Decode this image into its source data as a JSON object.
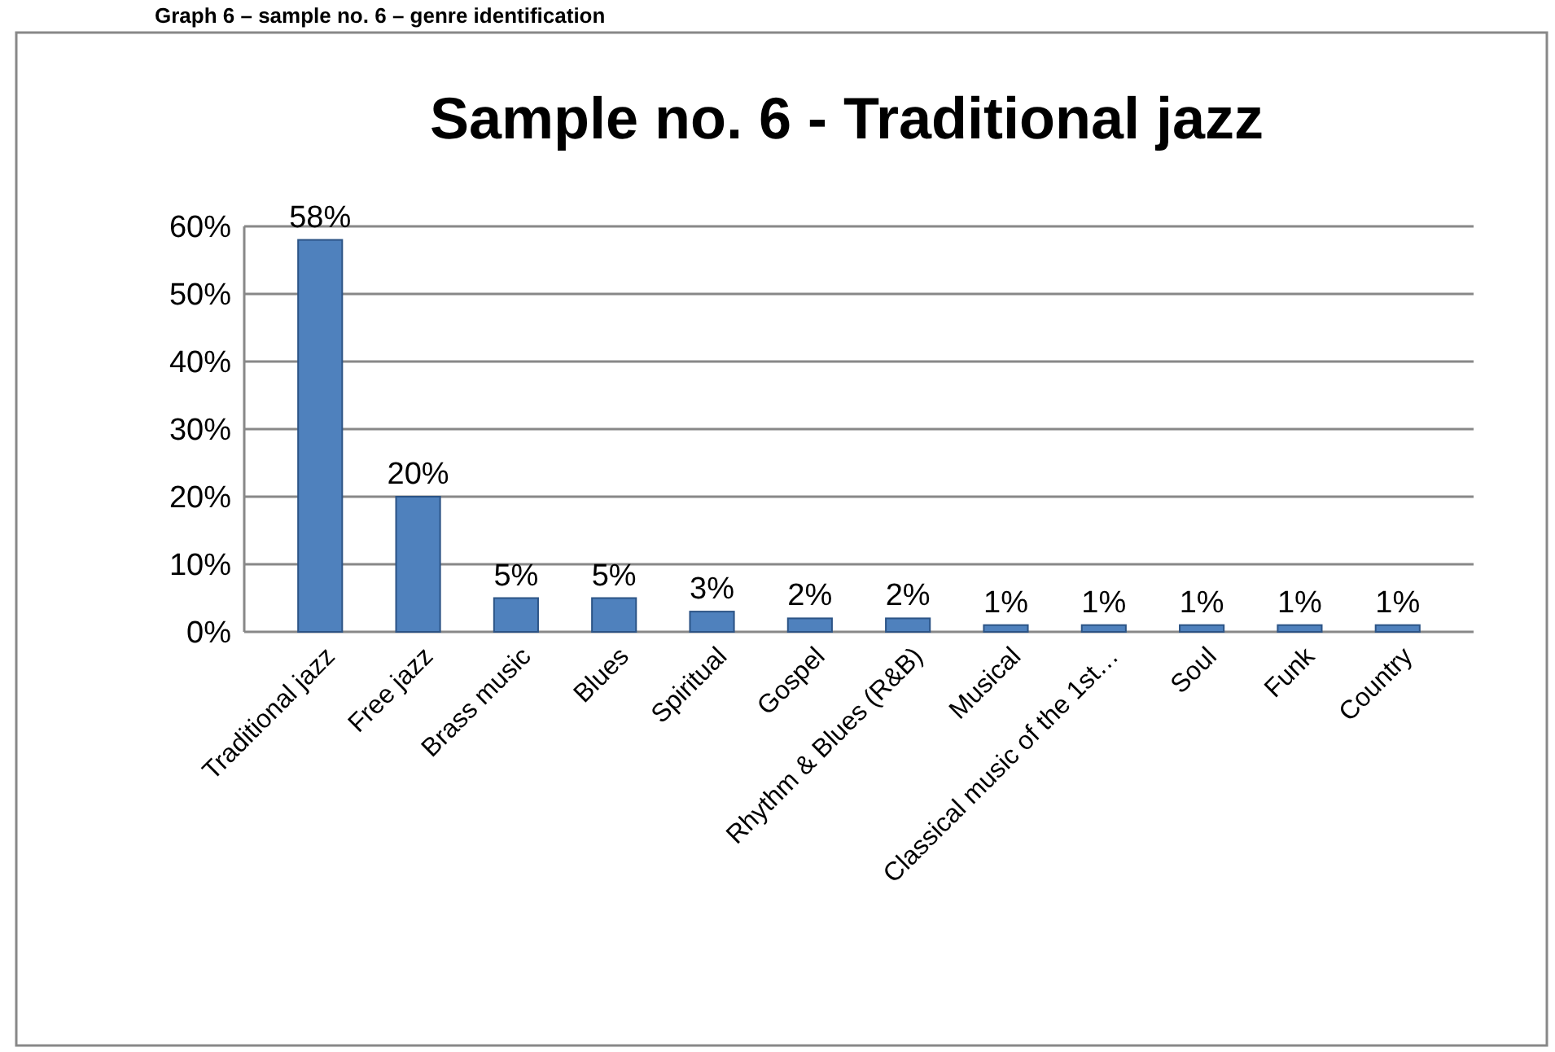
{
  "chart_data": {
    "type": "bar",
    "title": "Sample no. 6 - Traditional jazz",
    "annotations": [
      "Graph 6 – sample no. 6 – genre identification"
    ],
    "categories": [
      "Traditional jazz",
      "Free jazz",
      "Brass music",
      "Blues",
      "Spiritual",
      "Gospel",
      "Rhythm & Blues (R&B)",
      "Musical",
      "Classical music of the 1st…",
      "Soul",
      "Funk",
      "Country"
    ],
    "values": [
      58,
      20,
      5,
      5,
      3,
      2,
      2,
      1,
      1,
      1,
      1,
      1
    ],
    "value_labels": [
      "58%",
      "20%",
      "5%",
      "5%",
      "3%",
      "2%",
      "2%",
      "1%",
      "1%",
      "1%",
      "1%",
      "1%"
    ],
    "color": "#4f81bd",
    "ylim": [
      0,
      60
    ],
    "yticks": [
      {
        "value": 0,
        "label": "0%"
      },
      {
        "value": 10,
        "label": "10%"
      },
      {
        "value": 20,
        "label": "20%"
      },
      {
        "value": 30,
        "label": "30%"
      },
      {
        "value": 40,
        "label": "40%"
      },
      {
        "value": 50,
        "label": "50%"
      },
      {
        "value": 60,
        "label": "60%"
      }
    ],
    "grid": "y"
  }
}
